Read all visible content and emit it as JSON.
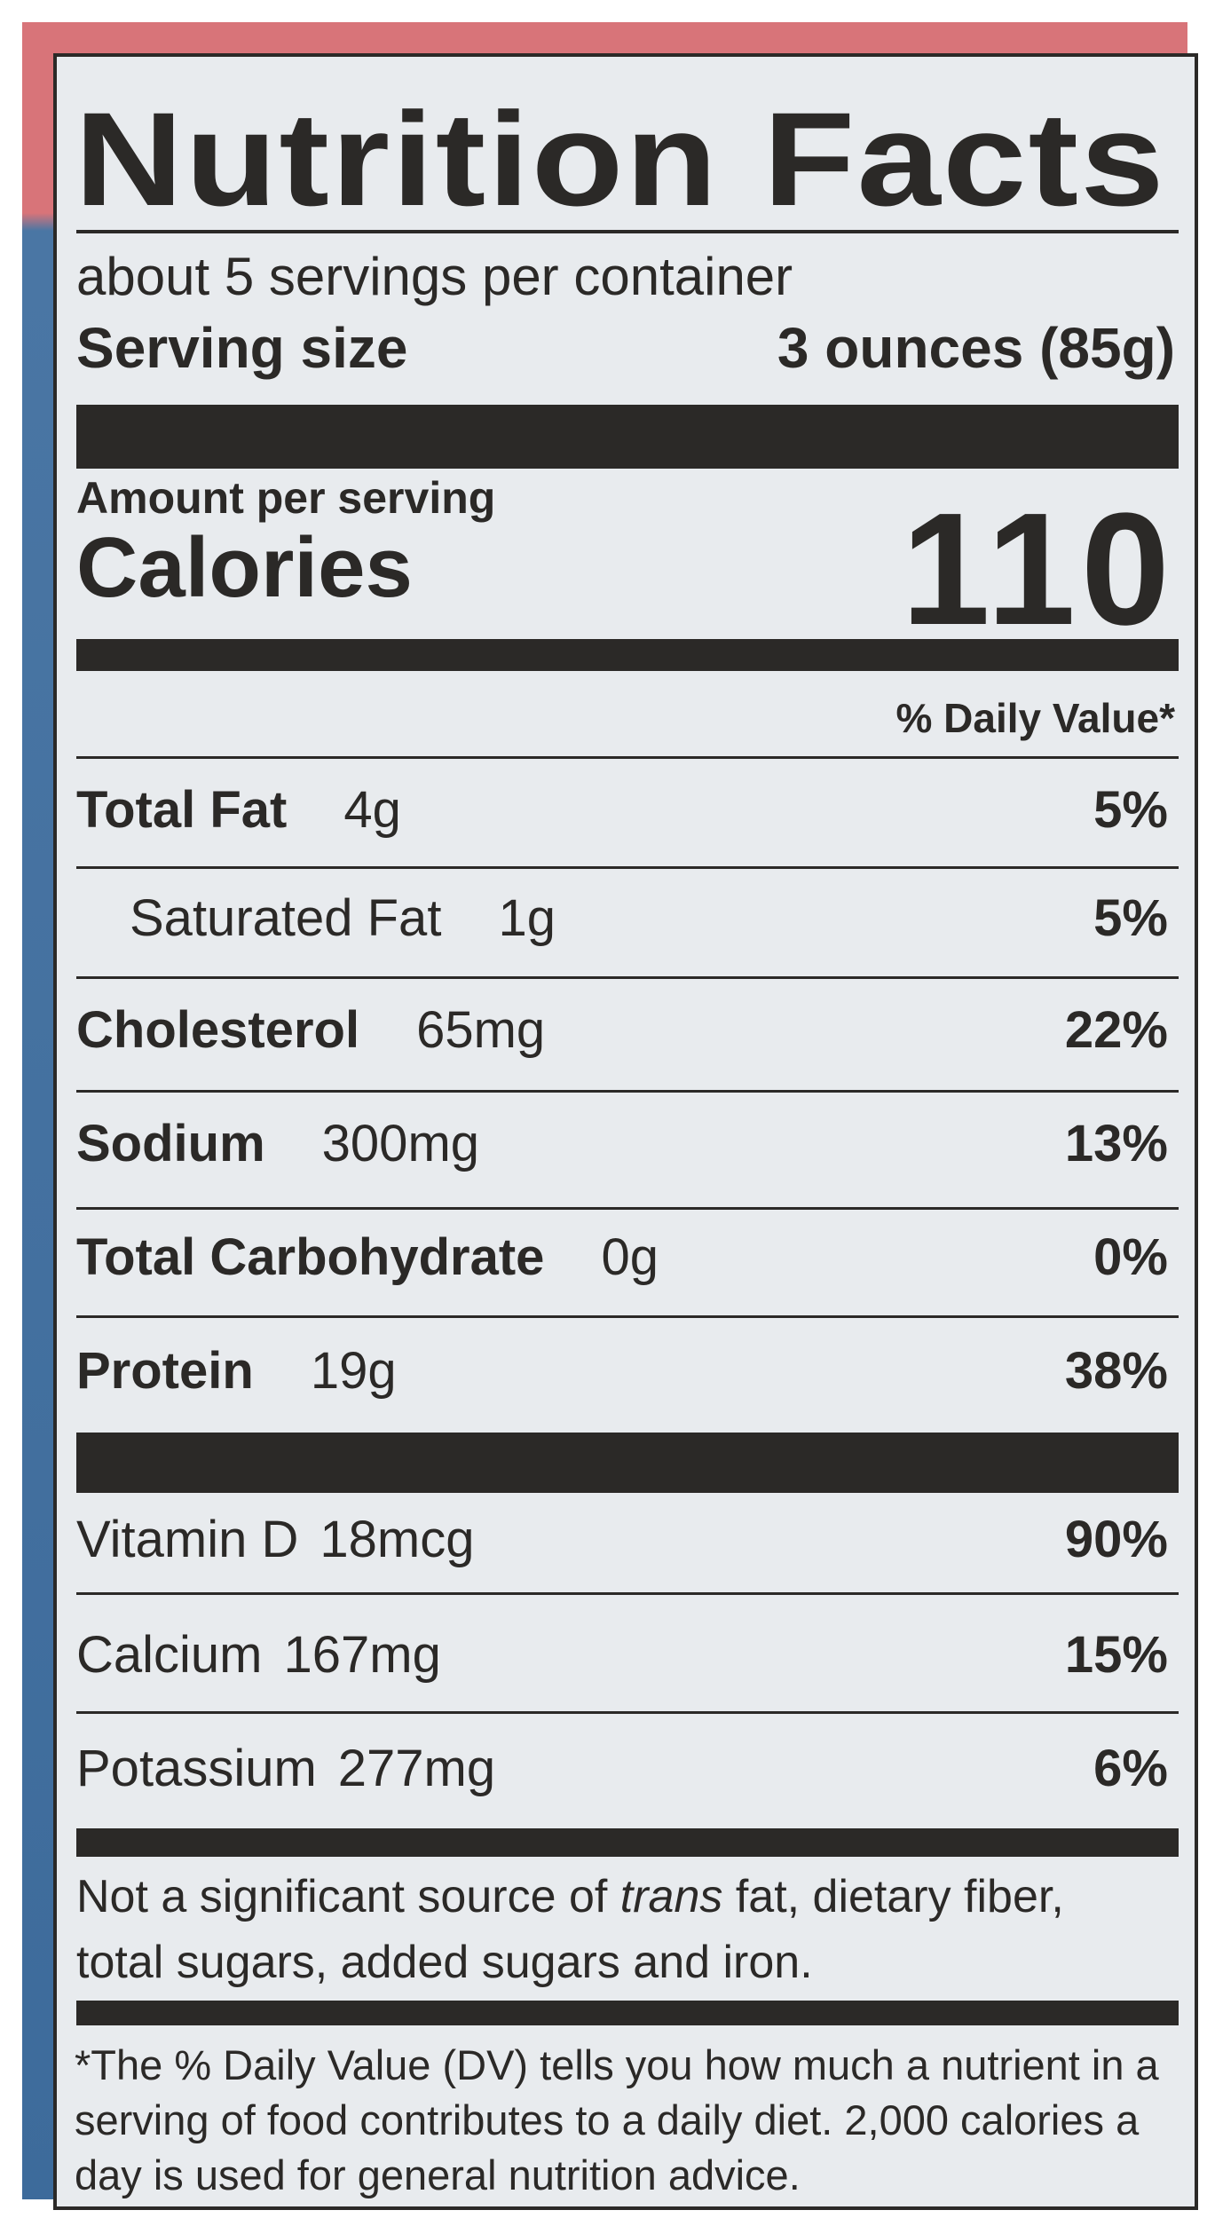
{
  "label": {
    "title": "Nutrition Facts",
    "servings_per_container": "about 5 servings per container",
    "serving_size_label": "Serving size",
    "serving_size_value": "3 ounces (85g)",
    "amount_per_serving": "Amount per serving",
    "calories_label": "Calories",
    "calories_value": "110",
    "daily_value_header": "% Daily Value*",
    "nutrients": [
      {
        "name": "Total Fat",
        "amount": "4g",
        "dv": "5%"
      },
      {
        "name": "Saturated Fat",
        "amount": "1g",
        "dv": "5%"
      },
      {
        "name": "Cholesterol",
        "amount": "65mg",
        "dv": "22%"
      },
      {
        "name": "Sodium",
        "amount": "300mg",
        "dv": "13%"
      },
      {
        "name": "Total Carbohydrate",
        "amount": "0g",
        "dv": "0%"
      },
      {
        "name": "Protein",
        "amount": "19g",
        "dv": "38%"
      }
    ],
    "vitamins": [
      {
        "name": "Vitamin D",
        "amount": "18mcg",
        "dv": "90%"
      },
      {
        "name": "Calcium",
        "amount": "167mg",
        "dv": "15%"
      },
      {
        "name": "Potassium",
        "amount": "277mg",
        "dv": "6%"
      }
    ],
    "note_part1": "Not a significant source of ",
    "note_italic": "trans",
    "note_part2": " fat, dietary fiber, total sugars, added sugars and iron.",
    "footnote": "*The % Daily Value (DV) tells you how much a nutrient in a serving of food contributes to a daily diet. 2,000 calories a day is used for general nutrition advice."
  },
  "colors": {
    "packaging_top": "#d87479",
    "packaging_bottom": "#3d6b9b",
    "label_bg": "#e8ebee",
    "ink": "#2b2927"
  }
}
